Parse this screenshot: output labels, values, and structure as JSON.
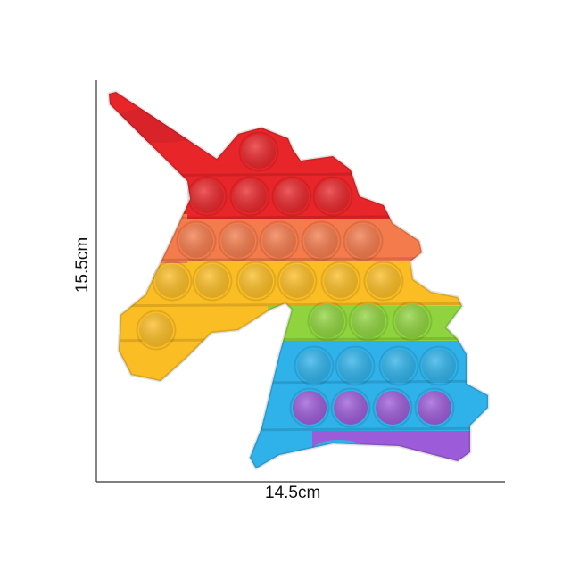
{
  "product": {
    "description_shape": "unicorn-head",
    "colors": {
      "red": "#e8262a",
      "orange": "#f47b4c",
      "yellow": "#fbbd24",
      "green": "#8fd43e",
      "blue": "#2fb2ea",
      "purple": "#9c5bd8"
    }
  },
  "dimensions": {
    "height_label": "15.5cm",
    "width_label": "14.5cm"
  }
}
